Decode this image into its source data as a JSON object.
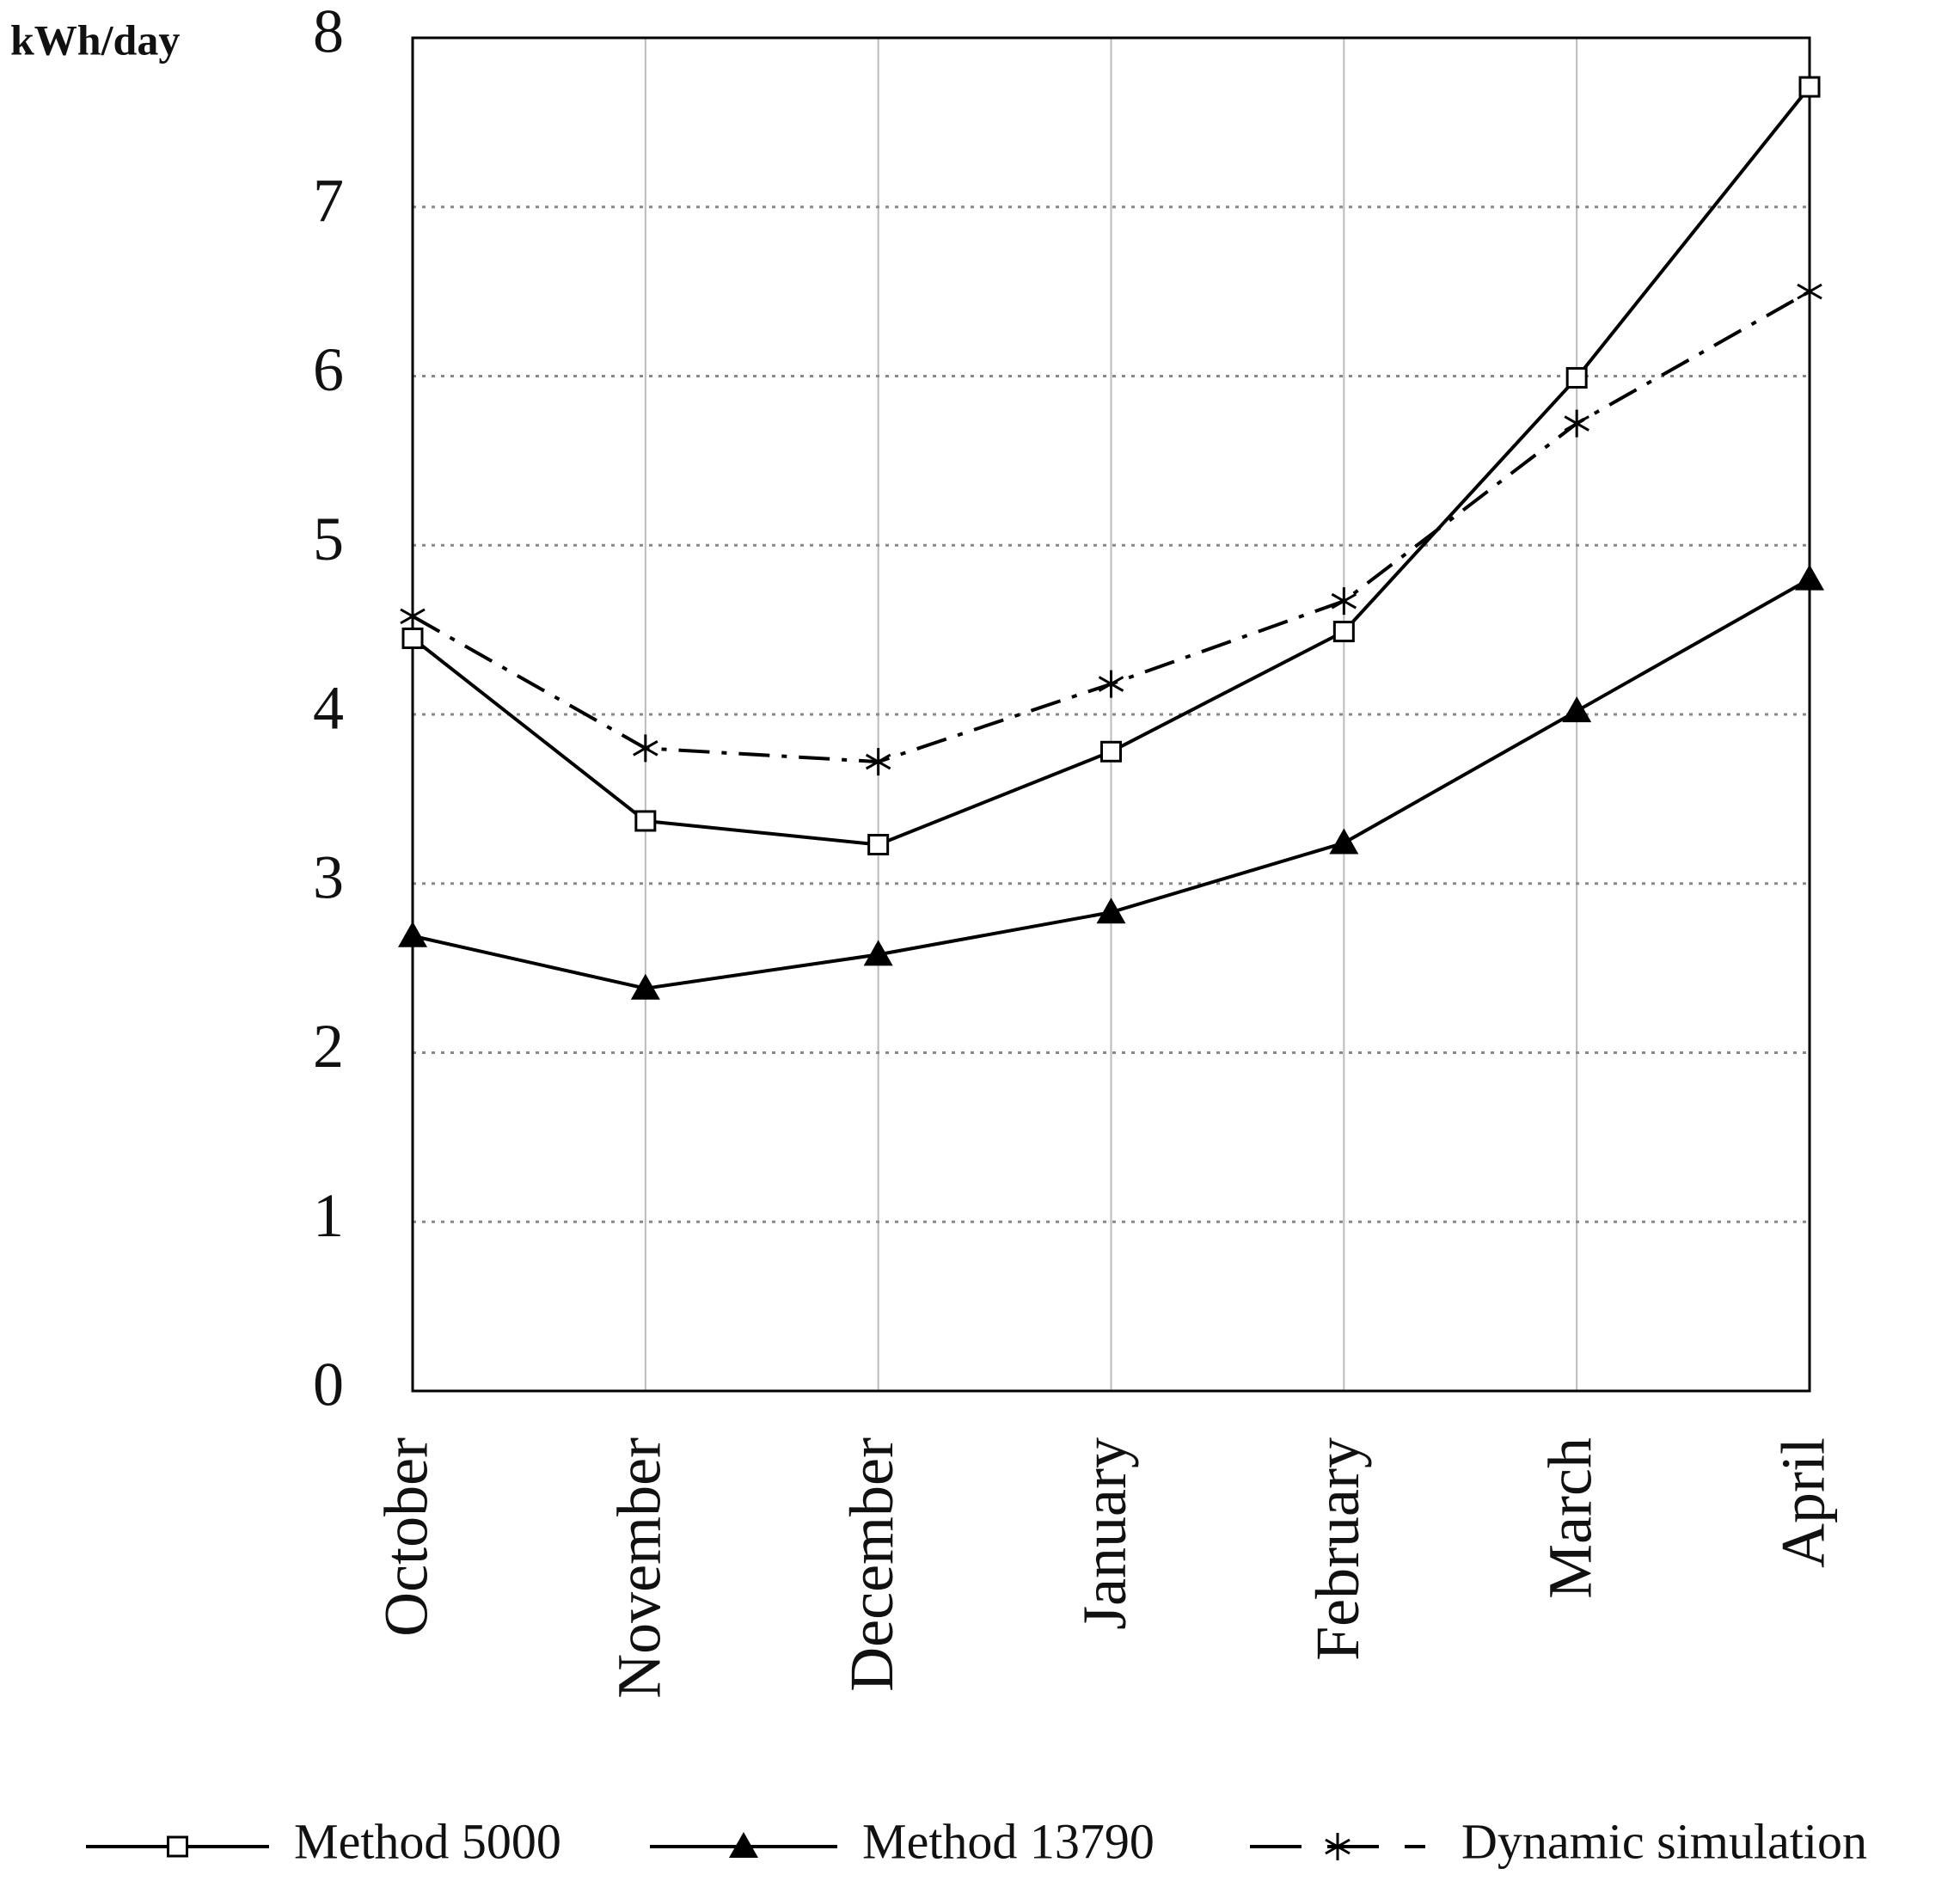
{
  "chart_data": {
    "type": "line",
    "y_label": "kWh/day",
    "categories": [
      "October",
      "November",
      "December",
      "January",
      "February",
      "March",
      "April"
    ],
    "series": [
      {
        "name": "Method 5000",
        "color": "#000000",
        "marker": "square",
        "dash": "solid",
        "values": [
          4.45,
          3.37,
          3.23,
          3.78,
          4.49,
          5.99,
          7.71
        ]
      },
      {
        "name": "Method 13790",
        "color": "#000000",
        "marker": "triangle",
        "dash": "solid",
        "values": [
          2.69,
          2.38,
          2.58,
          2.83,
          3.24,
          4.02,
          4.8
        ]
      },
      {
        "name": "Dynamic simulation",
        "color": "#000000",
        "marker": "star",
        "dash": "dashdot",
        "values": [
          4.58,
          3.8,
          3.72,
          4.18,
          4.67,
          5.72,
          6.5
        ]
      }
    ],
    "ylim": [
      0,
      8
    ],
    "yticks": [
      0,
      1,
      2,
      3,
      4,
      5,
      6,
      7,
      8
    ],
    "grid": true,
    "legend": "bottom"
  }
}
